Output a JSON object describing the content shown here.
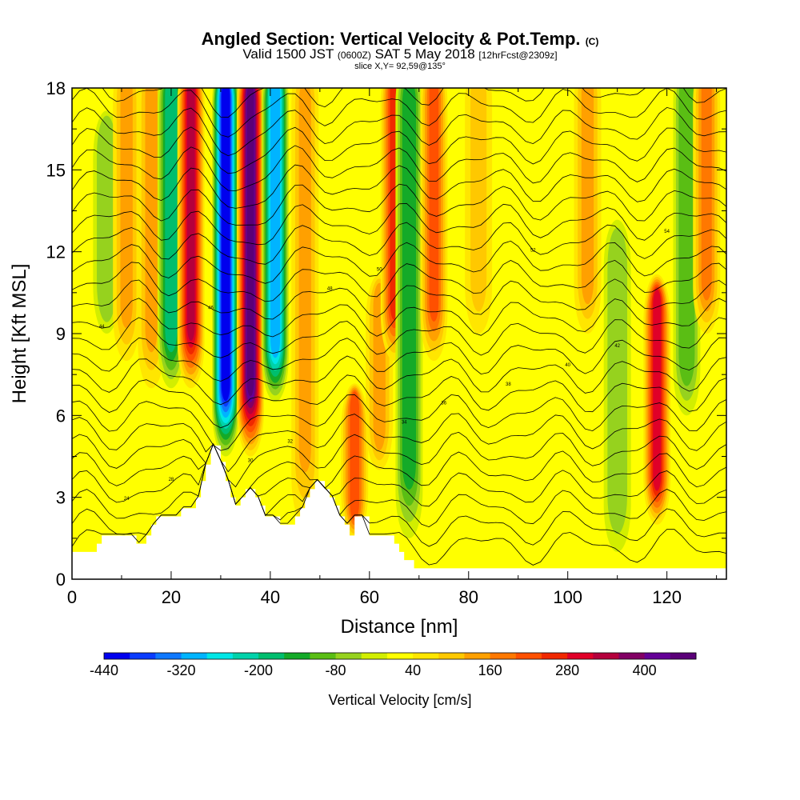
{
  "chart_data": {
    "type": "heatmap",
    "title": "Angled Section: Vertical Velocity & Pot.Temp.",
    "title_mark": "(C)",
    "subtitle_valid": "Valid 1500 JST",
    "subtitle_utc": "(0600Z)",
    "subtitle_date": "SAT 5 May 2018",
    "subtitle_fcst": "[12hrFcst@2309z]",
    "slice_label": "slice X,Y= 92,59@135°",
    "xlabel": "Distance [nm]",
    "ylabel": "Height [Kft MSL]",
    "xlim": [
      0,
      132
    ],
    "ylim": [
      0,
      18
    ],
    "x_ticks": [
      0,
      20,
      40,
      60,
      80,
      100,
      120
    ],
    "y_ticks": [
      0,
      3,
      6,
      9,
      12,
      15,
      18
    ],
    "colorbar": {
      "label": "Vertical Velocity [cm/s]",
      "min": -440,
      "max": 460,
      "step": 40,
      "tick_labels": [
        "-440",
        "-320",
        "-200",
        "-80",
        "40",
        "160",
        "280",
        "400"
      ],
      "colors": [
        "#0000ee",
        "#0a3cff",
        "#0f78ff",
        "#00b4ff",
        "#00e6e6",
        "#00d2aa",
        "#00be6e",
        "#14aa28",
        "#5abe14",
        "#96d21e",
        "#d2ee00",
        "#ffff00",
        "#ffe600",
        "#ffc800",
        "#ffa000",
        "#ff7800",
        "#ff5000",
        "#f02800",
        "#e00028",
        "#b4003c",
        "#820064",
        "#640096",
        "#5a0078"
      ]
    },
    "velocity_cores": [
      {
        "x": 7,
        "z_bottom": 9,
        "z_top": 16,
        "w": -80
      },
      {
        "x": 11,
        "z_bottom": 8,
        "z_top": 18,
        "w": 120
      },
      {
        "x": 16,
        "z_bottom": 7,
        "z_top": 18,
        "w": 120
      },
      {
        "x": 20,
        "z_bottom": 7,
        "z_top": 18,
        "w": -200
      },
      {
        "x": 24,
        "z_bottom": 7,
        "z_top": 18,
        "w": 320
      },
      {
        "x": 31,
        "z_bottom": 4.5,
        "z_top": 18,
        "w": -440
      },
      {
        "x": 36,
        "z_bottom": 4.5,
        "z_top": 18,
        "w": 440
      },
      {
        "x": 41,
        "z_bottom": 6.5,
        "z_top": 18,
        "w": -320
      },
      {
        "x": 47,
        "z_bottom": 2,
        "z_top": 18,
        "w": 120
      },
      {
        "x": 57,
        "z_bottom": 1.5,
        "z_top": 6,
        "w": 200
      },
      {
        "x": 62,
        "z_bottom": 4,
        "z_top": 10,
        "w": 120
      },
      {
        "x": 65,
        "z_bottom": 8,
        "z_top": 18,
        "w": 240
      },
      {
        "x": 68,
        "z_bottom": 1.5,
        "z_top": 18,
        "w": -160
      },
      {
        "x": 73,
        "z_bottom": 8,
        "z_top": 18,
        "w": 200
      },
      {
        "x": 82,
        "z_bottom": 9,
        "z_top": 18,
        "w": 80
      },
      {
        "x": 104,
        "z_bottom": 9,
        "z_top": 18,
        "w": 120
      },
      {
        "x": 110,
        "z_bottom": 1,
        "z_top": 12,
        "w": -80
      },
      {
        "x": 118,
        "z_bottom": 2,
        "z_top": 10,
        "w": 300
      },
      {
        "x": 124,
        "z_bottom": 6,
        "z_top": 18,
        "w": -120
      },
      {
        "x": 128,
        "z_bottom": 9,
        "z_top": 18,
        "w": 160
      }
    ],
    "terrain": [
      [
        0,
        1.0
      ],
      [
        5,
        1.0
      ],
      [
        5,
        1.3
      ],
      [
        6,
        1.3
      ],
      [
        6,
        1.6
      ],
      [
        13,
        1.6
      ],
      [
        13,
        1.3
      ],
      [
        15,
        1.3
      ],
      [
        15,
        1.6
      ],
      [
        16,
        1.6
      ],
      [
        16,
        2.0
      ],
      [
        17,
        2.0
      ],
      [
        17,
        2.3
      ],
      [
        22,
        2.3
      ],
      [
        22,
        2.6
      ],
      [
        25,
        2.6
      ],
      [
        25,
        3.0
      ],
      [
        26,
        3.0
      ],
      [
        26,
        3.6
      ],
      [
        27,
        3.6
      ],
      [
        27,
        4.2
      ],
      [
        28,
        4.2
      ],
      [
        28,
        4.9
      ],
      [
        30,
        4.9
      ],
      [
        30,
        4.3
      ],
      [
        31,
        4.3
      ],
      [
        31,
        3.6
      ],
      [
        32,
        3.6
      ],
      [
        32,
        3.0
      ],
      [
        33,
        3.0
      ],
      [
        33,
        2.7
      ],
      [
        34,
        2.7
      ],
      [
        34,
        3.0
      ],
      [
        35,
        3.0
      ],
      [
        35,
        3.3
      ],
      [
        37,
        3.3
      ],
      [
        37,
        3.0
      ],
      [
        38,
        3.0
      ],
      [
        38,
        2.7
      ],
      [
        39,
        2.7
      ],
      [
        39,
        2.3
      ],
      [
        42,
        2.3
      ],
      [
        42,
        2.0
      ],
      [
        45,
        2.0
      ],
      [
        45,
        2.3
      ],
      [
        46,
        2.3
      ],
      [
        46,
        2.6
      ],
      [
        47,
        2.6
      ],
      [
        47,
        3.0
      ],
      [
        48,
        3.0
      ],
      [
        48,
        3.3
      ],
      [
        49,
        3.3
      ],
      [
        49,
        3.6
      ],
      [
        51,
        3.6
      ],
      [
        51,
        3.3
      ],
      [
        52,
        3.3
      ],
      [
        52,
        3.0
      ],
      [
        53,
        3.0
      ],
      [
        53,
        2.7
      ],
      [
        54,
        2.7
      ],
      [
        54,
        2.3
      ],
      [
        55,
        2.3
      ],
      [
        55,
        2.0
      ],
      [
        56,
        2.0
      ],
      [
        56,
        1.6
      ],
      [
        57,
        1.6
      ],
      [
        57,
        2.3
      ],
      [
        60,
        2.3
      ],
      [
        60,
        1.6
      ],
      [
        65,
        1.6
      ],
      [
        65,
        1.3
      ],
      [
        66,
        1.3
      ],
      [
        66,
        1.0
      ],
      [
        67,
        1.0
      ],
      [
        67,
        0.7
      ],
      [
        69,
        0.7
      ],
      [
        69,
        0.4
      ],
      [
        132,
        0.4
      ]
    ],
    "theta_contours": {
      "count": 25,
      "contour_labels": [
        "24",
        "28",
        "30",
        "32",
        "34",
        "36",
        "38",
        "40",
        "42",
        "44",
        "46",
        "48",
        "50",
        "52",
        "54"
      ]
    }
  }
}
